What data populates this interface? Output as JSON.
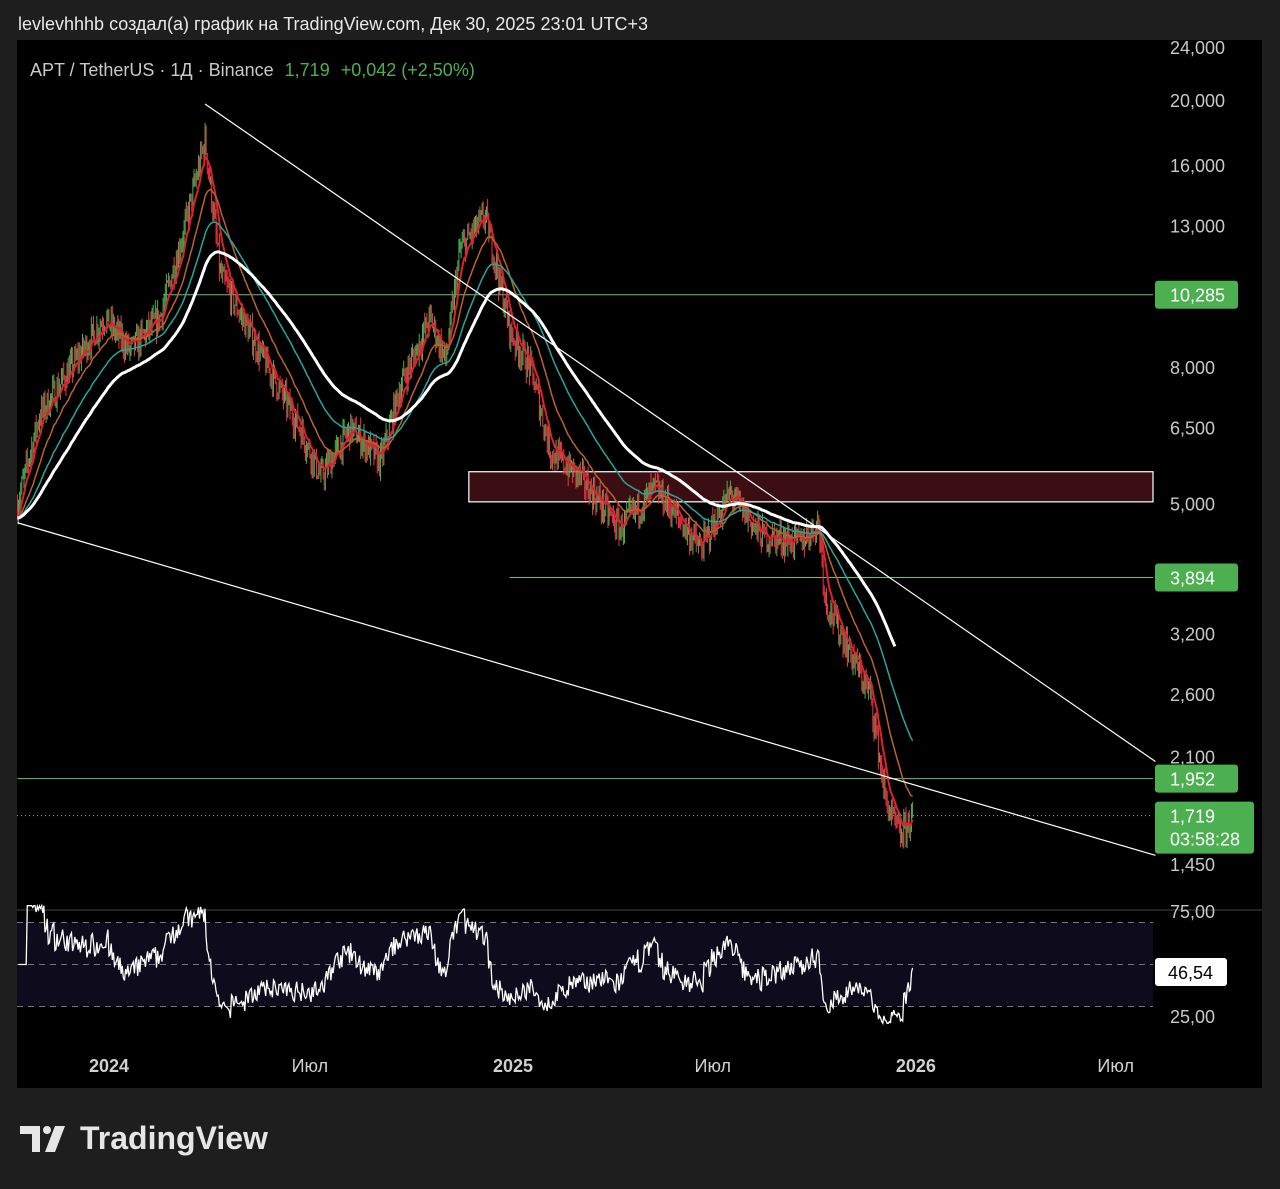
{
  "caption": "levlevhhhb создал(а) график на TradingView.com, Дек 30, 2025 23:01 UTC+3",
  "legend": {
    "symbol": "APT / TetherUS · 1Д · Binance",
    "price": "1,719",
    "change": "+0,042 (+2,50%)"
  },
  "footer": {
    "brand": "TradingView"
  },
  "colors": {
    "up": "#4caf50",
    "down": "#f23645",
    "label_green": "#4caf50",
    "zone": "#3b0e14"
  },
  "chart_data": {
    "type": "candlestick",
    "title": "APT / TetherUS · 1Д · Binance",
    "scale": "log",
    "ylim": [
      1.3,
      25
    ],
    "y_ticks": [
      {
        "v": 24,
        "t": "24,000"
      },
      {
        "v": 20,
        "t": "20,000"
      },
      {
        "v": 16,
        "t": "16,000"
      },
      {
        "v": 13,
        "t": "13,000"
      },
      {
        "v": 8,
        "t": "8,000"
      },
      {
        "v": 6.5,
        "t": "6,500"
      },
      {
        "v": 5,
        "t": "5,000"
      },
      {
        "v": 3.2,
        "t": "3,200"
      },
      {
        "v": 2.6,
        "t": "2,600"
      },
      {
        "v": 2.1,
        "t": "2,100"
      },
      {
        "v": 1.45,
        "t": "1,450"
      }
    ],
    "x_ticks": [
      {
        "d": 0,
        "t": "2024"
      },
      {
        "d": 182,
        "t": "Июл"
      },
      {
        "d": 366,
        "t": "2025"
      },
      {
        "d": 547,
        "t": "Июл"
      },
      {
        "d": 731,
        "t": "2026"
      },
      {
        "d": 912,
        "t": "Июл"
      }
    ],
    "x_unit": "days since 2024-01-01",
    "close_path": [
      [
        -83,
        5.0
      ],
      [
        -63,
        6.8
      ],
      [
        -4,
        9.5
      ],
      [
        19,
        8.5
      ],
      [
        46,
        9.5
      ],
      [
        69,
        13
      ],
      [
        87,
        17.5
      ],
      [
        101,
        11
      ],
      [
        128,
        9
      ],
      [
        173,
        6.5
      ],
      [
        192,
        5.5
      ],
      [
        219,
        6.5
      ],
      [
        246,
        5.8
      ],
      [
        264,
        7.5
      ],
      [
        291,
        9.5
      ],
      [
        305,
        8.2
      ],
      [
        318,
        12
      ],
      [
        341,
        13.5
      ],
      [
        364,
        9
      ],
      [
        382,
        8
      ],
      [
        400,
        6
      ],
      [
        427,
        5.5
      ],
      [
        463,
        4.6
      ],
      [
        495,
        5.3
      ],
      [
        536,
        4.3
      ],
      [
        563,
        5.2
      ],
      [
        590,
        4.5
      ],
      [
        626,
        4.4
      ],
      [
        643,
        4.7
      ],
      [
        649,
        3.6
      ],
      [
        672,
        3.0
      ],
      [
        690,
        2.6
      ],
      [
        704,
        1.8
      ],
      [
        717,
        1.6
      ],
      [
        728,
        1.719
      ]
    ],
    "price_labels": [
      {
        "v": 10.285,
        "t": "10,285",
        "from_day": 49
      },
      {
        "v": 3.894,
        "t": "3,894",
        "from_day": 363
      },
      {
        "v": 1.952,
        "t": "1,952",
        "from_day": -83
      }
    ],
    "last_price": {
      "v": 1.719,
      "t": "1,719",
      "timer": "03:58:28"
    },
    "zone": {
      "low": 5.05,
      "high": 5.6,
      "from_day": 326
    },
    "trendlines": [
      [
        [
          87,
          19.8
        ],
        [
          948,
          2.07
        ]
      ],
      [
        [
          -83,
          4.7
        ],
        [
          948,
          1.5
        ]
      ]
    ],
    "rsi": {
      "ticks": [
        {
          "v": 75,
          "t": "75,00"
        },
        {
          "v": 25,
          "t": "25,00"
        }
      ],
      "bands": [
        70,
        30
      ],
      "ylim": [
        22,
        78
      ],
      "last": "46,54"
    }
  }
}
